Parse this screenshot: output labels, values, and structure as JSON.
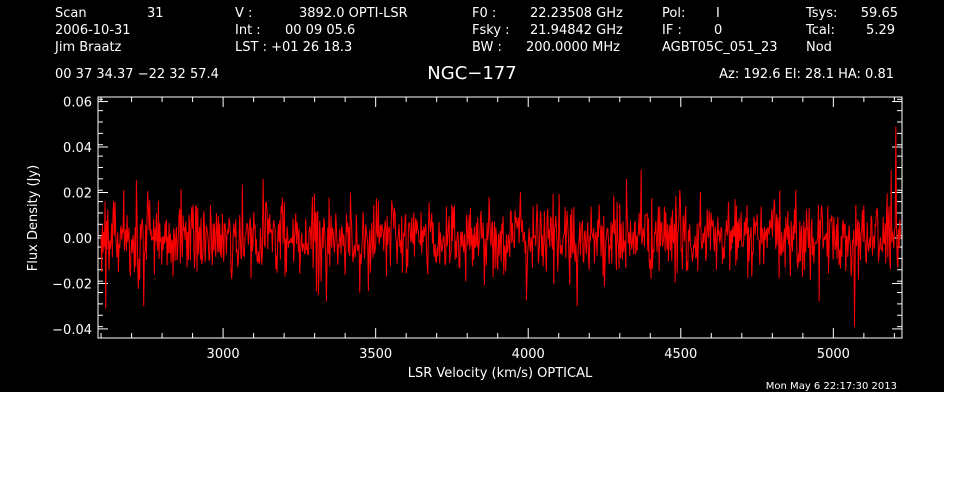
{
  "header": {
    "left": [
      "Scan",
      "31",
      "2006-10-31",
      "Jim Braatz"
    ],
    "scan_label": "Scan",
    "scan_value": "31",
    "date": "2006-10-31",
    "observer": "Jim Braatz",
    "v_label": "V   :",
    "v_value": "3892.0 OPTI-LSR",
    "int_label": "Int  :",
    "int_value": "00 09 05.6",
    "lst_label": "LST : +01 26 18.3",
    "f0_label": "F0   :",
    "f0_value": "22.23508 GHz",
    "fsky_label": "Fsky :",
    "fsky_value": "21.94842 GHz",
    "bw_label": "BW   :",
    "bw_value": "200.0000 MHz",
    "pol_label": "Pol:",
    "pol_value": "I",
    "if_label": "IF :",
    "if_value": "0",
    "project": "AGBT05C_051_23",
    "tsys_label": "Tsys:",
    "tsys_value": "59.65",
    "tcal_label": "Tcal:",
    "tcal_value": "5.29",
    "proc": "Nod",
    "coords": "00 37 34.37  −22 32 57.4",
    "source": "NGC−177",
    "az_el_ha": "Az: 192.6  El:  28.1  HA:  0.81",
    "timestamp": "Mon May  6 22:17:30 2013"
  },
  "colors": {
    "background": "#000000",
    "axes": "#ffffff",
    "trace": "#ff0000"
  },
  "chart_data": {
    "type": "line",
    "title": "NGC−177",
    "xlabel": "LSR Velocity (km/s) OPTICAL",
    "ylabel": "Flux Density (Jy)",
    "xlim": [
      2590,
      5225
    ],
    "ylim": [
      -0.044,
      0.062
    ],
    "x_ticks": [
      3000,
      3500,
      4000,
      4500,
      5000
    ],
    "x_tick_labels": [
      "3000",
      "3500",
      "4000",
      "4500",
      "5000"
    ],
    "y_ticks": [
      -0.04,
      -0.02,
      0.0,
      0.02,
      0.04,
      0.06
    ],
    "y_tick_labels": [
      "−0.04",
      "−0.02",
      "0.00",
      "0.02",
      "0.04",
      "0.06"
    ],
    "grid": false,
    "series": [
      {
        "color": "#ff0000",
        "sampling": {
          "x_start": 2600,
          "x_end": 5220,
          "n_points": 1200,
          "noise_rms": 0.0085,
          "mean": 0.0
        },
        "features": [
          {
            "x": 2615,
            "y": -0.031
          },
          {
            "x": 2740,
            "y": -0.03
          },
          {
            "x": 3130,
            "y": 0.026
          },
          {
            "x": 4370,
            "y": 0.03
          },
          {
            "x": 4160,
            "y": -0.03
          },
          {
            "x": 5070,
            "y": -0.039
          },
          {
            "x": 5205,
            "y": 0.049
          },
          {
            "x": 5190,
            "y": 0.03
          }
        ]
      }
    ]
  }
}
